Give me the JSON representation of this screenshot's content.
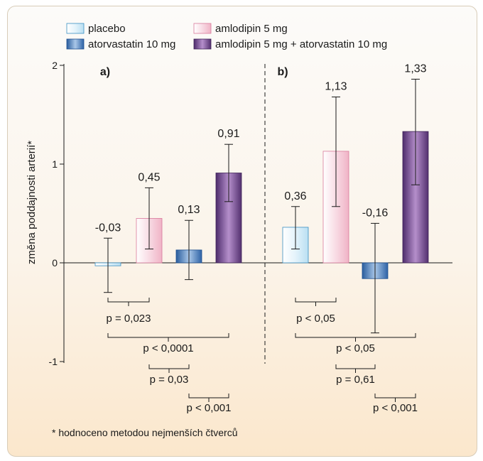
{
  "chart_data": {
    "type": "bar",
    "ylabel": "změna poddajnosti arterií*",
    "ylim": [
      -1,
      2
    ],
    "yticks": [
      "2",
      "1",
      "0",
      "-1"
    ],
    "yticks_values": [
      2,
      1,
      0,
      -1
    ],
    "legend": [
      {
        "label": "placebo",
        "color": "#e4f3fb"
      },
      {
        "label": "amlodipin 5 mg",
        "color": "#f8d8e2"
      },
      {
        "label": "atorvastatin 10 mg",
        "color": "#5b8fc8"
      },
      {
        "label": "amlodipin 5 mg + atorvastatin 10 mg",
        "color": "#8a5aa3"
      }
    ],
    "legend_placement": "top",
    "categories": [
      "placebo",
      "amlodipin 5 mg",
      "atorvastatin 10 mg",
      "amlodipin 5 mg + atorvastatin 10 mg"
    ],
    "panels": [
      {
        "label": "a)",
        "values": [
          -0.03,
          0.45,
          0.13,
          0.91
        ],
        "value_labels": [
          "-0,03",
          "0,45",
          "0,13",
          "0,91"
        ],
        "error_low": [
          -0.3,
          0.14,
          -0.17,
          0.62
        ],
        "error_high": [
          0.25,
          0.76,
          0.43,
          1.2
        ],
        "comparisons": [
          {
            "pair": [
              0,
              1
            ],
            "label": "p = 0,023"
          },
          {
            "pair": [
              0,
              3
            ],
            "label": "p < 0,0001"
          },
          {
            "pair": [
              1,
              2
            ],
            "label": "p = 0,03"
          },
          {
            "pair": [
              2,
              3
            ],
            "label": "p < 0,001"
          }
        ]
      },
      {
        "label": "b)",
        "values": [
          0.36,
          1.13,
          -0.16,
          1.33
        ],
        "value_labels": [
          "0,36",
          "1,13",
          "-0,16",
          "1,33"
        ],
        "error_low": [
          0.14,
          0.57,
          -0.71,
          0.79
        ],
        "error_high": [
          0.57,
          1.68,
          0.4,
          1.86
        ],
        "comparisons": [
          {
            "pair": [
              0,
              1
            ],
            "label": "p < 0,05"
          },
          {
            "pair": [
              0,
              3
            ],
            "label": "p < 0,05"
          },
          {
            "pair": [
              1,
              2
            ],
            "label": "p = 0,61"
          },
          {
            "pair": [
              2,
              3
            ],
            "label": "p < 0,001"
          }
        ]
      }
    ],
    "footnote": "* hodnoceno metodou nejmenších čtverců"
  }
}
